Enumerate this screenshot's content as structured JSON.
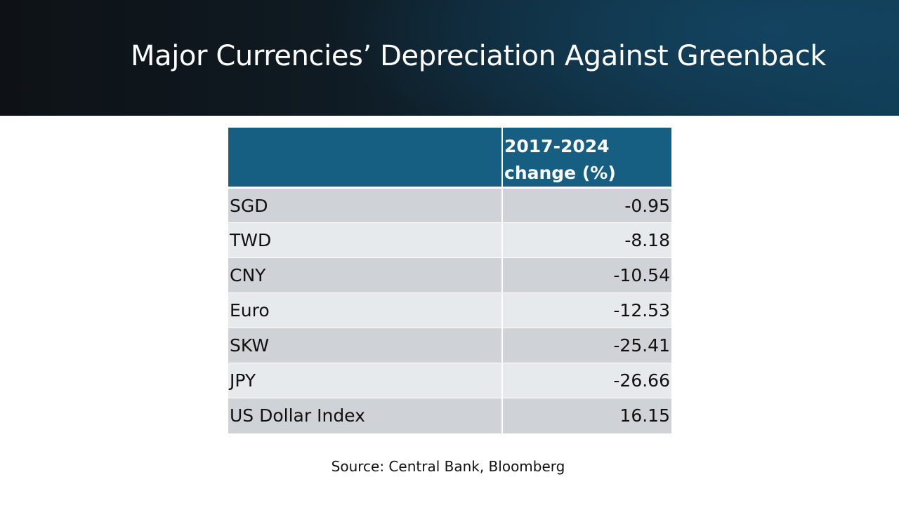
{
  "slide": {
    "title": "Major Currencies’ Depreciation Against Greenback"
  },
  "table": {
    "header": {
      "label_column": "",
      "value_column": "2017-2024 change (%)"
    },
    "rows": [
      {
        "label": "SGD",
        "value": "-0.95"
      },
      {
        "label": "TWD",
        "value": "-8.18"
      },
      {
        "label": "CNY",
        "value": "-10.54"
      },
      {
        "label": "Euro",
        "value": "-12.53"
      },
      {
        "label": "SKW",
        "value": "-25.41"
      },
      {
        "label": "JPY",
        "value": "-26.66"
      },
      {
        "label": "US Dollar Index",
        "value": "16.15"
      }
    ]
  },
  "source": "Source: Central Bank, Bloomberg",
  "colors": {
    "header_band_dark": "#0e1216",
    "header_band_accent": "#0f3a52",
    "table_header_bg": "#175e83",
    "row_dark_bg": "#cfd3d8",
    "row_light_bg": "#e7eaed"
  }
}
